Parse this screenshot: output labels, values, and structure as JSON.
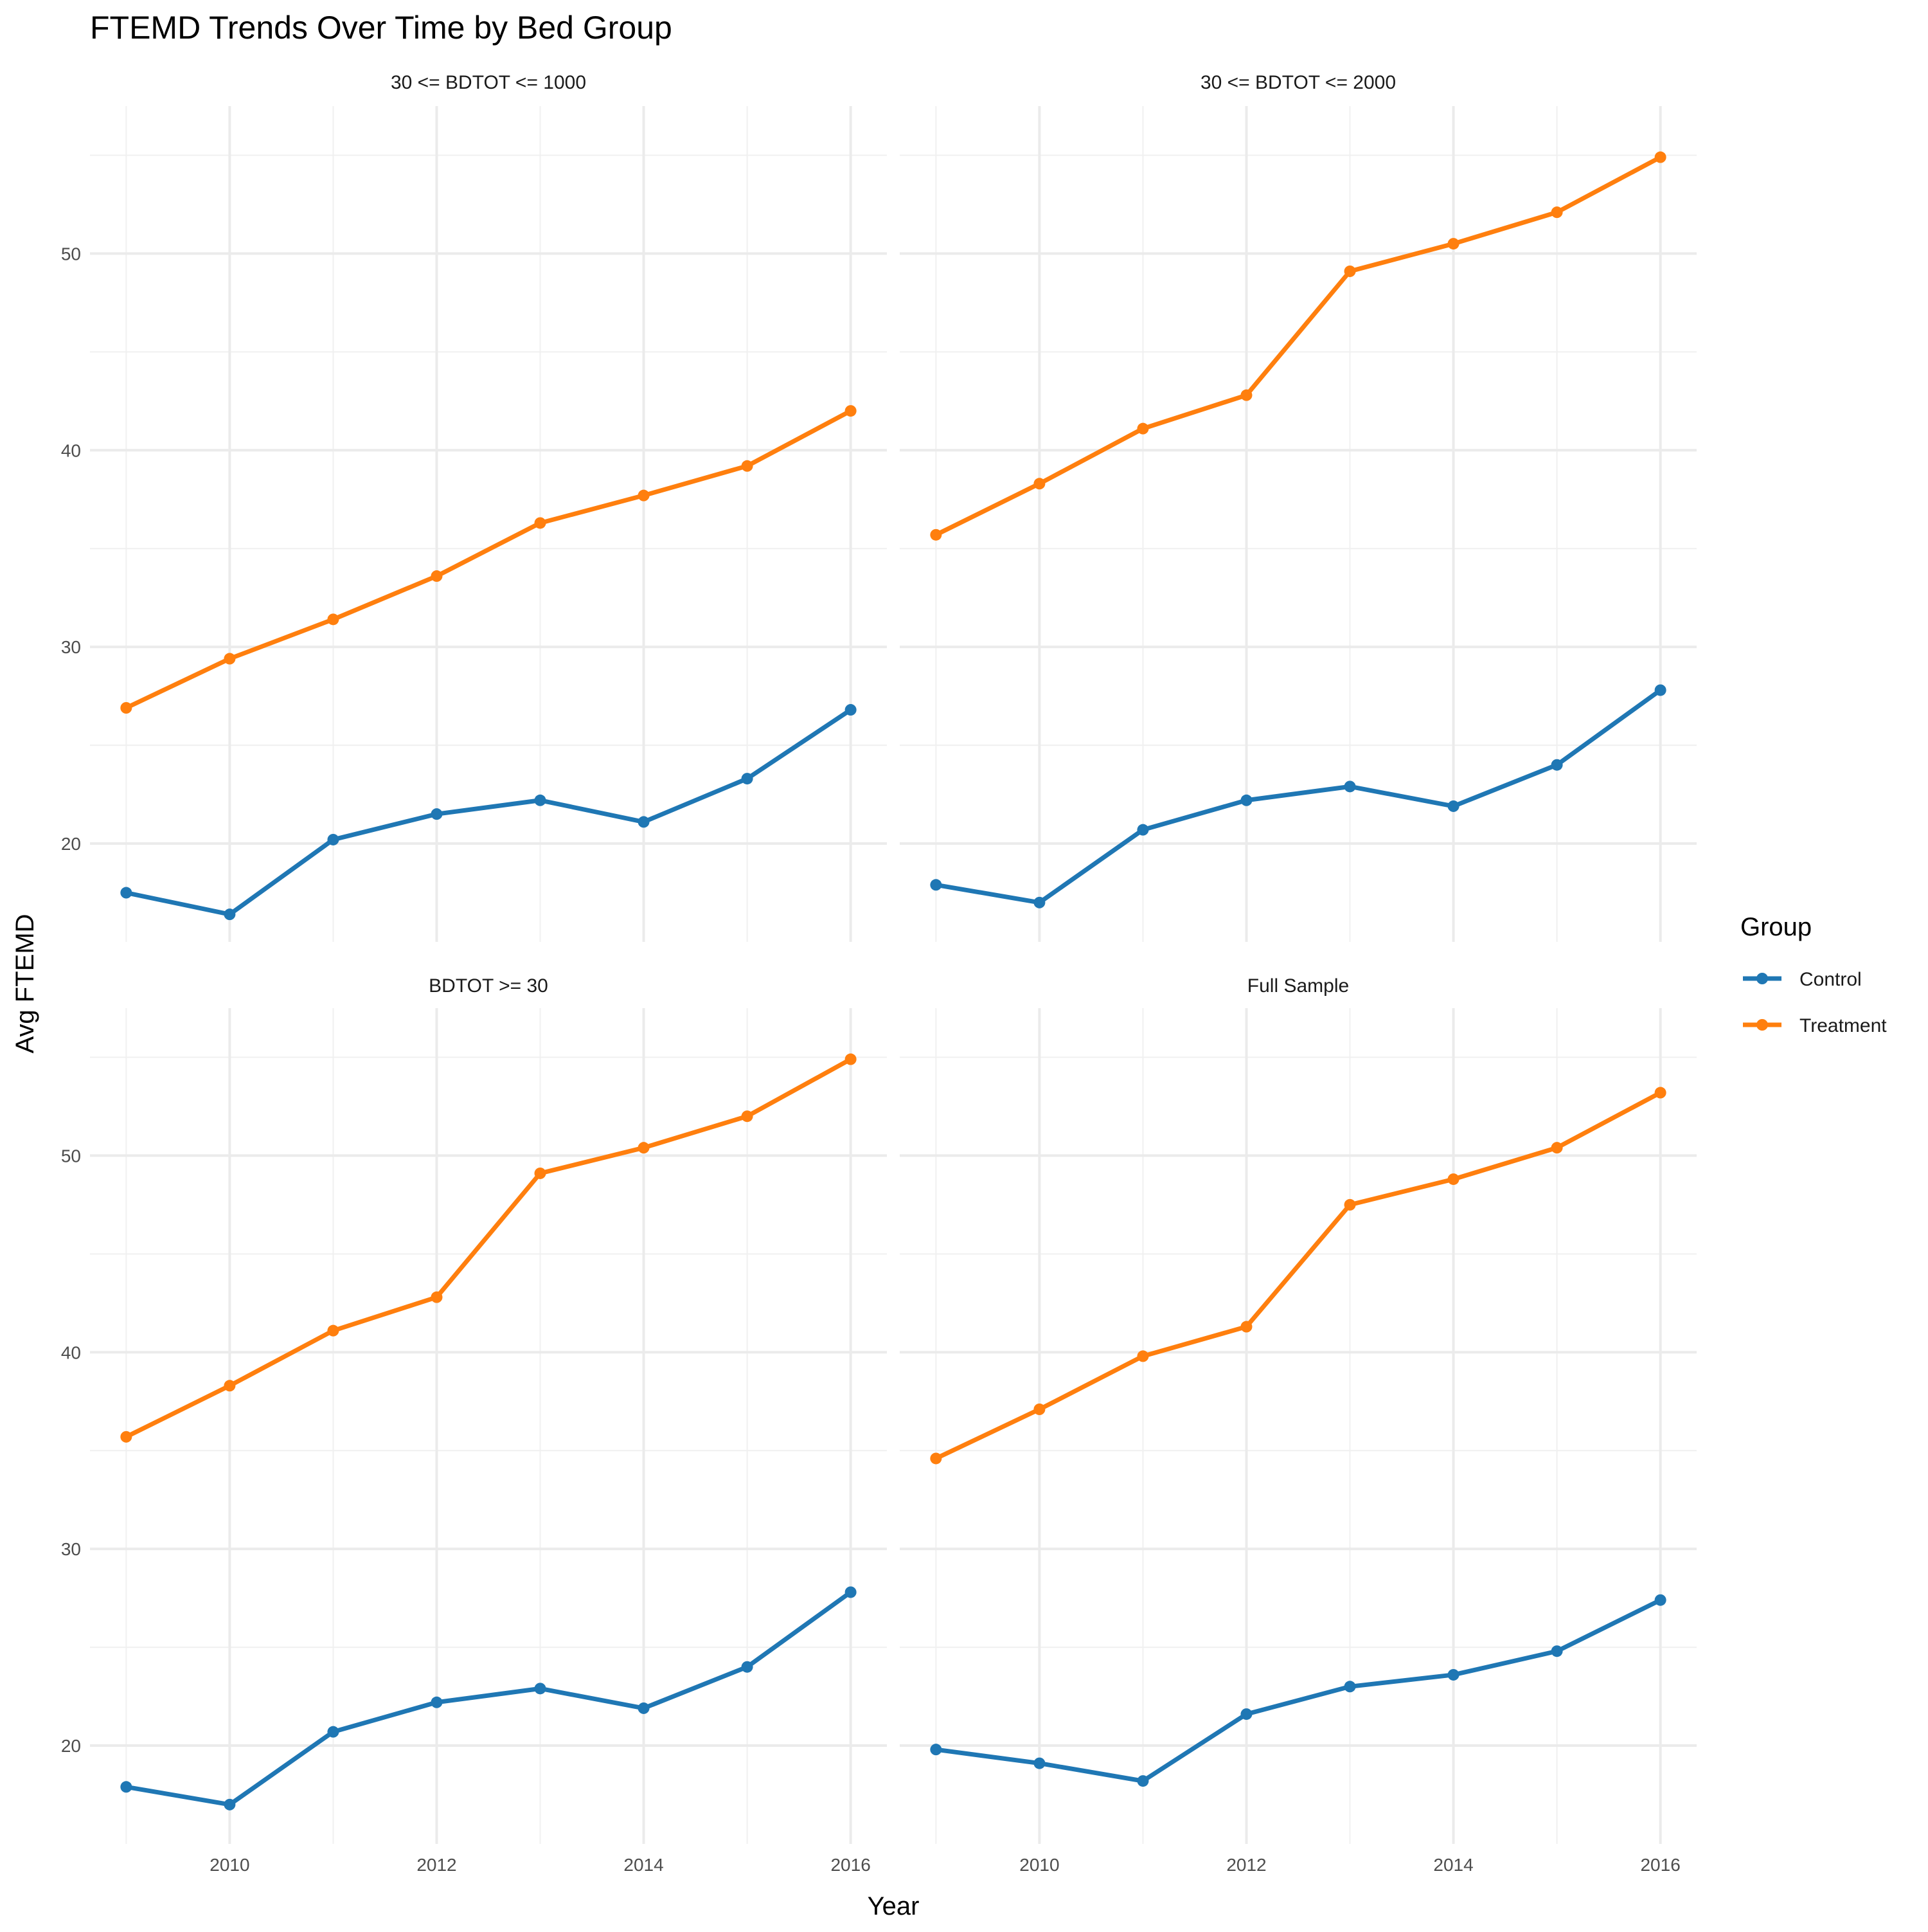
{
  "chart_data": {
    "type": "line",
    "title": "FTEMD Trends Over Time by Bed Group",
    "xlabel": "Year",
    "ylabel": "Avg FTEMD",
    "x": [
      2009,
      2010,
      2011,
      2012,
      2013,
      2014,
      2015,
      2016
    ],
    "x_ticks": [
      2010,
      2012,
      2014,
      2016
    ],
    "y_ticks": [
      20,
      30,
      40,
      50
    ],
    "xlim": [
      2008.65,
      2016.35
    ],
    "ylim": [
      15,
      57.5
    ],
    "grid": true,
    "facets": [
      {
        "label": "30 <= BDTOT <= 1000",
        "series": [
          {
            "name": "Control",
            "values": [
              17.5,
              16.4,
              20.2,
              21.5,
              22.2,
              21.1,
              23.3,
              26.8
            ]
          },
          {
            "name": "Treatment",
            "values": [
              26.9,
              29.4,
              31.4,
              33.6,
              36.3,
              37.7,
              39.2,
              42.0
            ]
          }
        ]
      },
      {
        "label": "30 <= BDTOT <= 2000",
        "series": [
          {
            "name": "Control",
            "values": [
              17.9,
              17.0,
              20.7,
              22.2,
              22.9,
              21.9,
              24.0,
              27.8
            ]
          },
          {
            "name": "Treatment",
            "values": [
              35.7,
              38.3,
              41.1,
              42.8,
              49.1,
              50.5,
              52.1,
              54.9
            ]
          }
        ]
      },
      {
        "label": "BDTOT >= 30",
        "series": [
          {
            "name": "Control",
            "values": [
              17.9,
              17.0,
              20.7,
              22.2,
              22.9,
              21.9,
              24.0,
              27.8
            ]
          },
          {
            "name": "Treatment",
            "values": [
              35.7,
              38.3,
              41.1,
              42.8,
              49.1,
              50.4,
              52.0,
              54.9
            ]
          }
        ]
      },
      {
        "label": "Full Sample",
        "series": [
          {
            "name": "Control",
            "values": [
              19.8,
              19.1,
              18.2,
              21.6,
              23.0,
              23.6,
              24.8,
              27.4
            ]
          },
          {
            "name": "Treatment",
            "values": [
              34.6,
              37.1,
              39.8,
              41.3,
              47.5,
              48.8,
              50.4,
              53.2
            ]
          }
        ]
      }
    ],
    "legend": {
      "title": "Group",
      "placement": "right",
      "entries": [
        {
          "name": "Control",
          "color": "#1f77b4"
        },
        {
          "name": "Treatment",
          "color": "#ff7f0e"
        }
      ]
    }
  }
}
